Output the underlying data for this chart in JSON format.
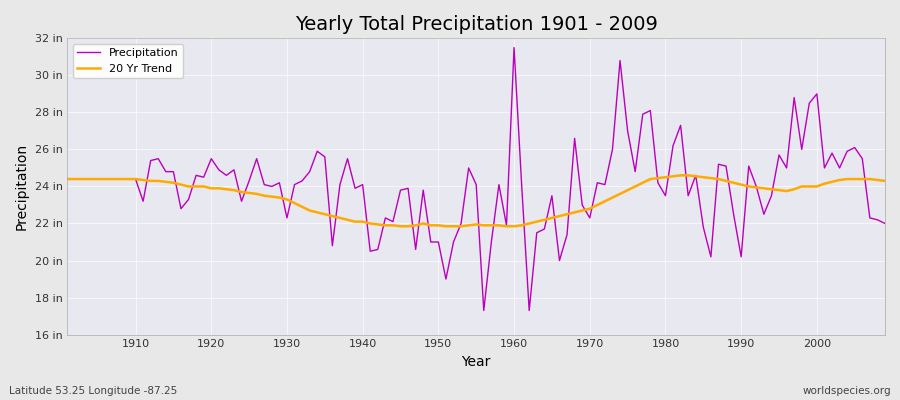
{
  "title": "Yearly Total Precipitation 1901 - 2009",
  "xlabel": "Year",
  "ylabel": "Precipitation",
  "background_color": "#e8e8e8",
  "plot_bg_color": "#e8e8f0",
  "line_color_precip": "#bb00bb",
  "line_color_trend": "#ffaa00",
  "xlim": [
    1901,
    2009
  ],
  "ylim": [
    16,
    32
  ],
  "yticks": [
    16,
    18,
    20,
    22,
    24,
    26,
    28,
    30,
    32
  ],
  "ytick_labels": [
    "16 in",
    "18 in",
    "20 in",
    "22 in",
    "24 in",
    "26 in",
    "28 in",
    "30 in",
    "32 in"
  ],
  "footer_left": "Latitude 53.25 Longitude -87.25",
  "footer_right": "worldspecies.org",
  "legend_entries": [
    "Precipitation",
    "20 Yr Trend"
  ],
  "years": [
    1901,
    1902,
    1903,
    1904,
    1905,
    1906,
    1907,
    1908,
    1909,
    1910,
    1911,
    1912,
    1913,
    1914,
    1915,
    1916,
    1917,
    1918,
    1919,
    1920,
    1921,
    1922,
    1923,
    1924,
    1925,
    1926,
    1927,
    1928,
    1929,
    1930,
    1931,
    1932,
    1933,
    1934,
    1935,
    1936,
    1937,
    1938,
    1939,
    1940,
    1941,
    1942,
    1943,
    1944,
    1945,
    1946,
    1947,
    1948,
    1949,
    1950,
    1951,
    1952,
    1953,
    1954,
    1955,
    1956,
    1957,
    1958,
    1959,
    1960,
    1961,
    1962,
    1963,
    1964,
    1965,
    1966,
    1967,
    1968,
    1969,
    1970,
    1971,
    1972,
    1973,
    1974,
    1975,
    1976,
    1977,
    1978,
    1979,
    1980,
    1981,
    1982,
    1983,
    1984,
    1985,
    1986,
    1987,
    1988,
    1989,
    1990,
    1991,
    1992,
    1993,
    1994,
    1995,
    1996,
    1997,
    1998,
    1999,
    2000,
    2001,
    2002,
    2003,
    2004,
    2005,
    2006,
    2007,
    2008,
    2009
  ],
  "precip": [
    24.4,
    24.4,
    24.4,
    24.4,
    24.4,
    24.4,
    24.4,
    24.4,
    24.4,
    24.4,
    23.2,
    25.4,
    25.5,
    24.8,
    24.8,
    22.8,
    23.3,
    24.6,
    24.5,
    25.5,
    24.9,
    24.6,
    24.9,
    23.2,
    24.3,
    25.5,
    24.1,
    24.0,
    24.2,
    22.3,
    24.1,
    24.3,
    24.8,
    25.9,
    25.6,
    20.8,
    24.1,
    25.5,
    23.9,
    24.1,
    20.5,
    20.6,
    22.3,
    22.1,
    23.8,
    23.9,
    20.6,
    23.8,
    21.0,
    21.0,
    19.0,
    21.0,
    22.0,
    25.0,
    24.1,
    17.3,
    21.0,
    24.1,
    21.9,
    31.5,
    24.1,
    17.3,
    21.5,
    21.7,
    23.5,
    20.0,
    21.4,
    26.6,
    23.0,
    22.3,
    24.2,
    24.1,
    26.0,
    30.8,
    27.0,
    24.8,
    27.9,
    28.1,
    24.2,
    23.5,
    26.2,
    27.3,
    23.5,
    24.6,
    21.8,
    20.2,
    25.2,
    25.1,
    22.5,
    20.2,
    25.1,
    24.0,
    22.5,
    23.5,
    25.7,
    25.0,
    28.8,
    26.0,
    28.5,
    29.0,
    25.0,
    25.8,
    25.0,
    25.9,
    26.1,
    25.5,
    22.3,
    22.2,
    22.0
  ],
  "trend": [
    24.4,
    24.4,
    24.4,
    24.4,
    24.4,
    24.4,
    24.4,
    24.4,
    24.4,
    24.4,
    24.35,
    24.3,
    24.3,
    24.25,
    24.2,
    24.1,
    24.0,
    24.0,
    24.0,
    23.9,
    23.9,
    23.85,
    23.8,
    23.7,
    23.65,
    23.6,
    23.5,
    23.45,
    23.4,
    23.3,
    23.1,
    22.9,
    22.7,
    22.6,
    22.5,
    22.4,
    22.3,
    22.2,
    22.1,
    22.1,
    22.0,
    21.95,
    21.9,
    21.9,
    21.85,
    21.85,
    21.9,
    22.0,
    21.9,
    21.9,
    21.85,
    21.85,
    21.85,
    21.9,
    21.95,
    21.9,
    21.9,
    21.9,
    21.85,
    21.85,
    21.9,
    22.0,
    22.1,
    22.2,
    22.3,
    22.4,
    22.5,
    22.6,
    22.7,
    22.8,
    23.0,
    23.2,
    23.4,
    23.6,
    23.8,
    24.0,
    24.2,
    24.4,
    24.45,
    24.5,
    24.55,
    24.6,
    24.6,
    24.55,
    24.5,
    24.45,
    24.4,
    24.3,
    24.2,
    24.1,
    24.0,
    23.95,
    23.9,
    23.85,
    23.8,
    23.75,
    23.85,
    24.0,
    24.0,
    24.0,
    24.15,
    24.25,
    24.35,
    24.4,
    24.4,
    24.4,
    24.4,
    24.35,
    24.3
  ]
}
